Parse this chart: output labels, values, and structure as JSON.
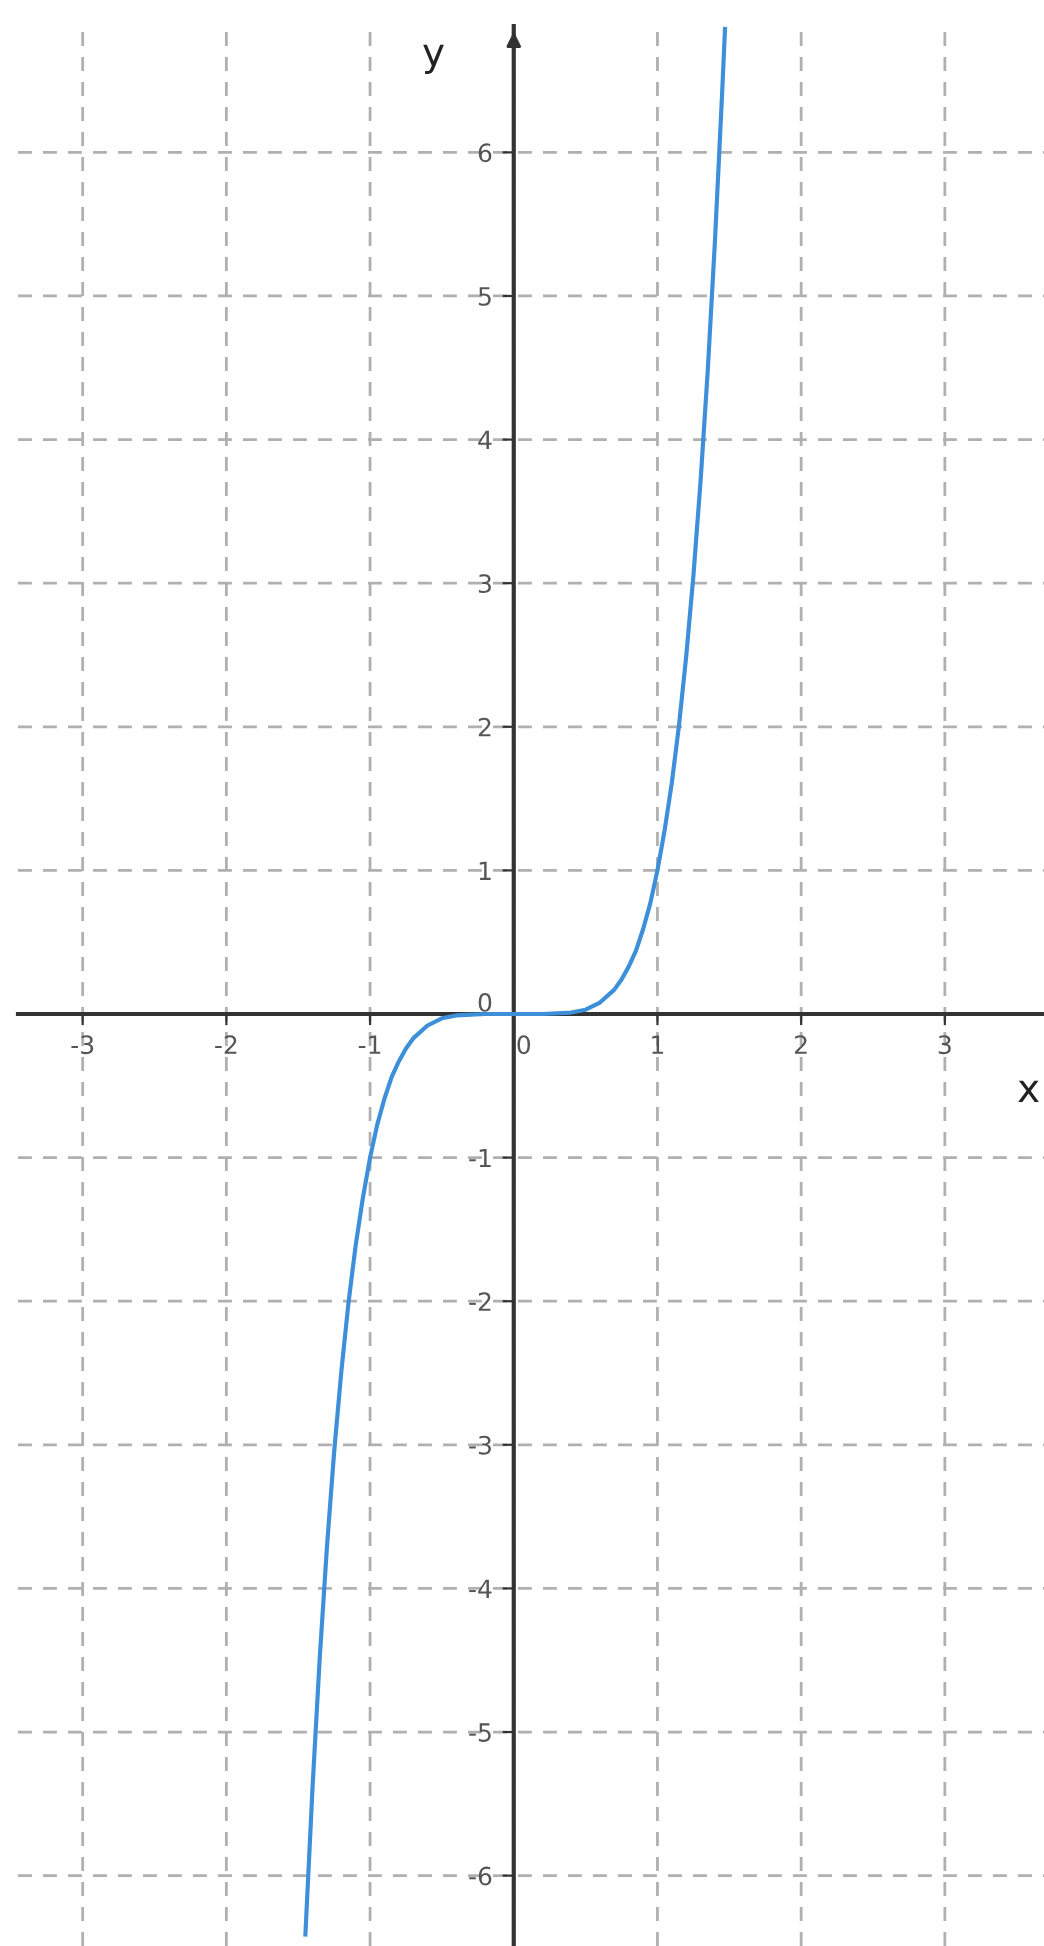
{
  "chart_data": {
    "type": "line",
    "xlabel": "x",
    "ylabel": "y",
    "x": [
      -1.45,
      -1.4,
      -1.35,
      -1.3,
      -1.25,
      -1.2,
      -1.15,
      -1.1,
      -1.05,
      -1,
      -0.95,
      -0.9,
      -0.85,
      -0.8,
      -0.75,
      -0.7,
      -0.6,
      -0.5,
      -0.4,
      -0.2,
      0,
      0.2,
      0.4,
      0.5,
      0.6,
      0.7,
      0.75,
      0.8,
      0.85,
      0.9,
      0.95,
      1,
      1.05,
      1.1,
      1.15,
      1.2,
      1.25,
      1.3,
      1.35,
      1.4,
      1.45,
      1.47
    ],
    "series": [
      {
        "color": "#3d8fd9",
        "values": [
          -6.41,
          -5.38,
          -4.48,
          -3.71,
          -3.05,
          -2.49,
          -2.01,
          -1.61,
          -1.28,
          -1,
          -0.77,
          -0.59,
          -0.44,
          -0.33,
          -0.24,
          -0.17,
          -0.08,
          -0.03,
          -0.01,
          0,
          0,
          0,
          0.01,
          0.03,
          0.08,
          0.17,
          0.24,
          0.33,
          0.44,
          0.59,
          0.77,
          1,
          1.28,
          1.61,
          2.01,
          2.49,
          3.05,
          3.71,
          4.48,
          5.38,
          6.41,
          6.86
        ]
      }
    ],
    "xlim": [
      -3.45,
      3.69
    ],
    "ylim": [
      -6.49,
      6.88
    ],
    "xticks": [
      -3,
      -2,
      -1,
      0,
      1,
      2,
      3
    ],
    "yticks": [
      -6,
      -5,
      -4,
      -3,
      -2,
      -1,
      0,
      1,
      2,
      3,
      4,
      5,
      6
    ],
    "grid": true,
    "marker": "none",
    "line_style": "solid"
  }
}
